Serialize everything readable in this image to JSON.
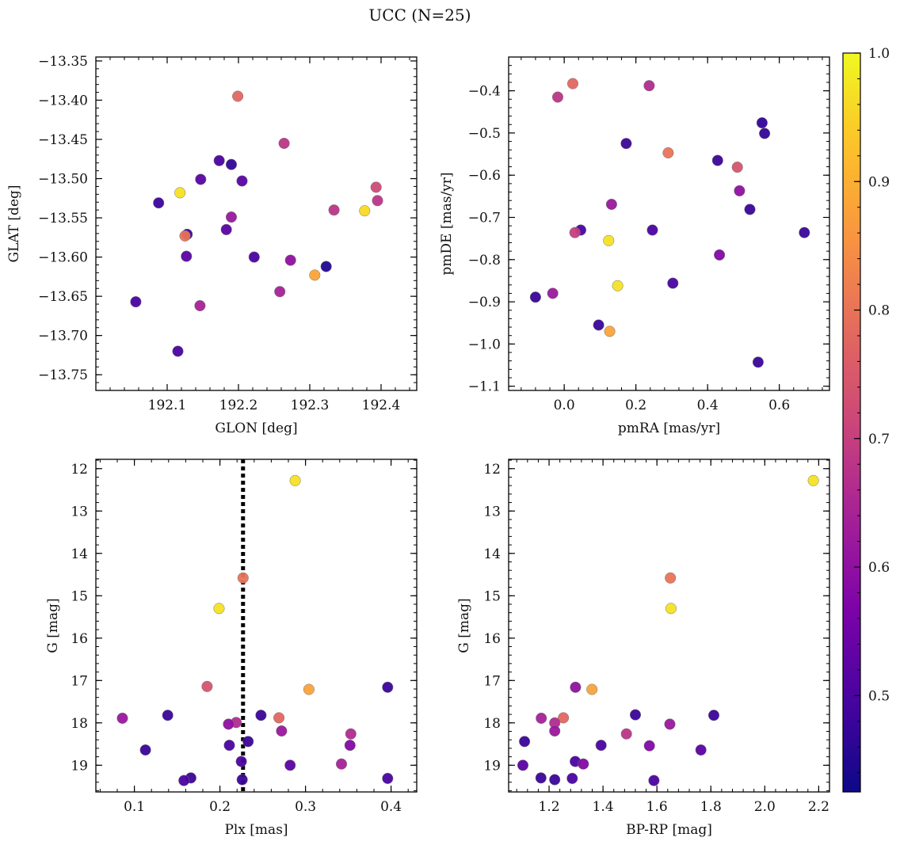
{
  "figure_title": "UCC (N=25)",
  "colorbar": {
    "range": [
      0.425,
      1.0
    ],
    "ticks": [
      0.5,
      0.6,
      0.7,
      0.8,
      0.9,
      1.0
    ],
    "tick_labels": [
      "0.5",
      "0.6",
      "0.7",
      "0.8",
      "0.9",
      "1.0"
    ],
    "colormap": "plasma"
  },
  "chart_data": [
    {
      "id": "glon-glat",
      "type": "scatter",
      "xlabel": "GLON [deg]",
      "ylabel": "GLAT [deg]",
      "xlim": [
        192.0,
        192.45
      ],
      "ylim": [
        -13.77,
        -13.345
      ],
      "y_inverted": false,
      "xticks": [
        192.1,
        192.2,
        192.3,
        192.4
      ],
      "xtick_labels": [
        "192.1",
        "192.2",
        "192.3",
        "192.4"
      ],
      "yticks": [
        -13.35,
        -13.4,
        -13.45,
        -13.5,
        -13.55,
        -13.6,
        -13.65,
        -13.7,
        -13.75
      ],
      "ytick_labels": [
        "−13.35",
        "−13.40",
        "−13.45",
        "−13.50",
        "−13.55",
        "−13.60",
        "−13.65",
        "−13.70",
        "−13.75"
      ],
      "x": [
        192.199,
        192.264,
        192.173,
        192.19,
        192.147,
        192.205,
        192.393,
        192.118,
        192.377,
        192.088,
        192.395,
        192.334,
        192.19,
        192.128,
        192.125,
        192.183,
        192.127,
        192.222,
        192.273,
        192.307,
        192.323,
        192.258,
        192.056,
        192.146,
        192.115
      ],
      "y": [
        -13.395,
        -13.455,
        -13.477,
        -13.482,
        -13.501,
        -13.503,
        -13.511,
        -13.518,
        -13.541,
        -13.531,
        -13.528,
        -13.54,
        -13.549,
        -13.571,
        -13.573,
        -13.565,
        -13.599,
        -13.6,
        -13.604,
        -13.623,
        -13.612,
        -13.644,
        -13.657,
        -13.662,
        -13.72
      ],
      "c": [
        0.78,
        0.68,
        0.5,
        0.47,
        0.52,
        0.52,
        0.72,
        0.97,
        0.96,
        0.48,
        0.68,
        0.68,
        0.62,
        0.48,
        0.8,
        0.52,
        0.52,
        0.5,
        0.6,
        0.88,
        0.45,
        0.64,
        0.5,
        0.64,
        0.5
      ]
    },
    {
      "id": "pmra-pmde",
      "type": "scatter",
      "xlabel": "pmRA [mas/yr]",
      "ylabel": "pmDE [mas/yr]",
      "xlim": [
        -0.155,
        0.74
      ],
      "ylim": [
        -1.11,
        -0.32
      ],
      "y_inverted": false,
      "xticks": [
        0.0,
        0.2,
        0.4,
        0.6
      ],
      "xtick_labels": [
        "0.0",
        "0.2",
        "0.4",
        "0.6"
      ],
      "yticks": [
        -0.4,
        -0.5,
        -0.6,
        -0.7,
        -0.8,
        -0.9,
        -1.0,
        -1.1
      ],
      "ytick_labels": [
        "−0.4",
        "−0.5",
        "−0.6",
        "−0.7",
        "−0.8",
        "−0.9",
        "−1.0",
        "−1.1"
      ],
      "x": [
        0.024,
        -0.018,
        0.237,
        0.552,
        0.559,
        0.173,
        0.29,
        0.428,
        0.483,
        0.489,
        0.132,
        0.518,
        0.046,
        0.03,
        0.246,
        0.67,
        0.124,
        0.433,
        0.303,
        0.149,
        -0.08,
        -0.032,
        0.096,
        0.127,
        0.541
      ],
      "y": [
        -0.383,
        -0.415,
        -0.388,
        -0.476,
        -0.501,
        -0.525,
        -0.547,
        -0.565,
        -0.581,
        -0.637,
        -0.669,
        -0.681,
        -0.73,
        -0.736,
        -0.73,
        -0.736,
        -0.755,
        -0.789,
        -0.856,
        -0.862,
        -0.889,
        -0.88,
        -0.955,
        -0.97,
        -1.043
      ],
      "c": [
        0.78,
        0.68,
        0.66,
        0.47,
        0.47,
        0.48,
        0.8,
        0.48,
        0.74,
        0.6,
        0.62,
        0.48,
        0.5,
        0.7,
        0.5,
        0.48,
        0.97,
        0.58,
        0.5,
        0.97,
        0.48,
        0.62,
        0.48,
        0.88,
        0.48
      ]
    },
    {
      "id": "plx-g",
      "type": "scatter",
      "xlabel": "Plx [mas]",
      "ylabel": "G [mag]",
      "xlim": [
        0.055,
        0.43
      ],
      "ylim": [
        11.78,
        19.63
      ],
      "y_inverted": true,
      "xticks": [
        0.1,
        0.2,
        0.3,
        0.4
      ],
      "xtick_labels": [
        "0.1",
        "0.2",
        "0.3",
        "0.4"
      ],
      "yticks": [
        12,
        13,
        14,
        15,
        16,
        17,
        18,
        19
      ],
      "ytick_labels": [
        "12",
        "13",
        "14",
        "15",
        "16",
        "17",
        "18",
        "19"
      ],
      "vline": 0.227,
      "x": [
        0.288,
        0.227,
        0.199,
        0.185,
        0.304,
        0.396,
        0.086,
        0.139,
        0.248,
        0.269,
        0.219,
        0.21,
        0.272,
        0.353,
        0.113,
        0.211,
        0.233,
        0.352,
        0.342,
        0.225,
        0.282,
        0.166,
        0.158,
        0.226,
        0.396
      ],
      "y": [
        12.28,
        14.58,
        15.3,
        17.14,
        17.21,
        17.16,
        17.89,
        17.82,
        17.82,
        17.88,
        17.99,
        18.03,
        18.19,
        18.26,
        18.64,
        18.53,
        18.44,
        18.53,
        18.97,
        18.91,
        19.0,
        19.3,
        19.36,
        19.34,
        19.31
      ],
      "c": [
        0.97,
        0.8,
        0.97,
        0.74,
        0.88,
        0.48,
        0.62,
        0.48,
        0.48,
        0.78,
        0.66,
        0.6,
        0.62,
        0.66,
        0.48,
        0.5,
        0.48,
        0.58,
        0.64,
        0.5,
        0.52,
        0.48,
        0.5,
        0.48,
        0.5
      ]
    },
    {
      "id": "bprp-g",
      "type": "scatter",
      "xlabel": "BP-RP [mag]",
      "ylabel": "G [mag]",
      "xlim": [
        1.05,
        2.24
      ],
      "ylim": [
        11.78,
        19.63
      ],
      "y_inverted": true,
      "xticks": [
        1.2,
        1.4,
        1.6,
        1.8,
        2.0,
        2.2
      ],
      "xtick_labels": [
        "1.2",
        "1.4",
        "1.6",
        "1.8",
        "2.0",
        "2.2"
      ],
      "yticks": [
        12,
        13,
        14,
        15,
        16,
        17,
        18,
        19
      ],
      "ytick_labels": [
        "12",
        "13",
        "14",
        "15",
        "16",
        "17",
        "18",
        "19"
      ],
      "x": [
        2.18,
        1.65,
        1.652,
        1.298,
        1.359,
        1.52,
        1.811,
        1.171,
        1.253,
        1.221,
        1.221,
        1.648,
        1.487,
        1.572,
        1.109,
        1.393,
        1.763,
        1.103,
        1.297,
        1.327,
        1.17,
        1.221,
        1.286,
        1.589
      ],
      "y": [
        12.28,
        14.58,
        15.3,
        17.16,
        17.21,
        17.81,
        17.82,
        17.89,
        17.88,
        18.0,
        18.19,
        18.03,
        18.26,
        18.54,
        18.44,
        18.53,
        18.64,
        19.0,
        18.91,
        18.97,
        19.3,
        19.34,
        19.31,
        19.36
      ],
      "c": [
        0.97,
        0.8,
        0.97,
        0.6,
        0.88,
        0.48,
        0.48,
        0.64,
        0.78,
        0.66,
        0.62,
        0.62,
        0.68,
        0.58,
        0.48,
        0.5,
        0.52,
        0.52,
        0.5,
        0.58,
        0.48,
        0.48,
        0.5,
        0.5
      ]
    }
  ]
}
